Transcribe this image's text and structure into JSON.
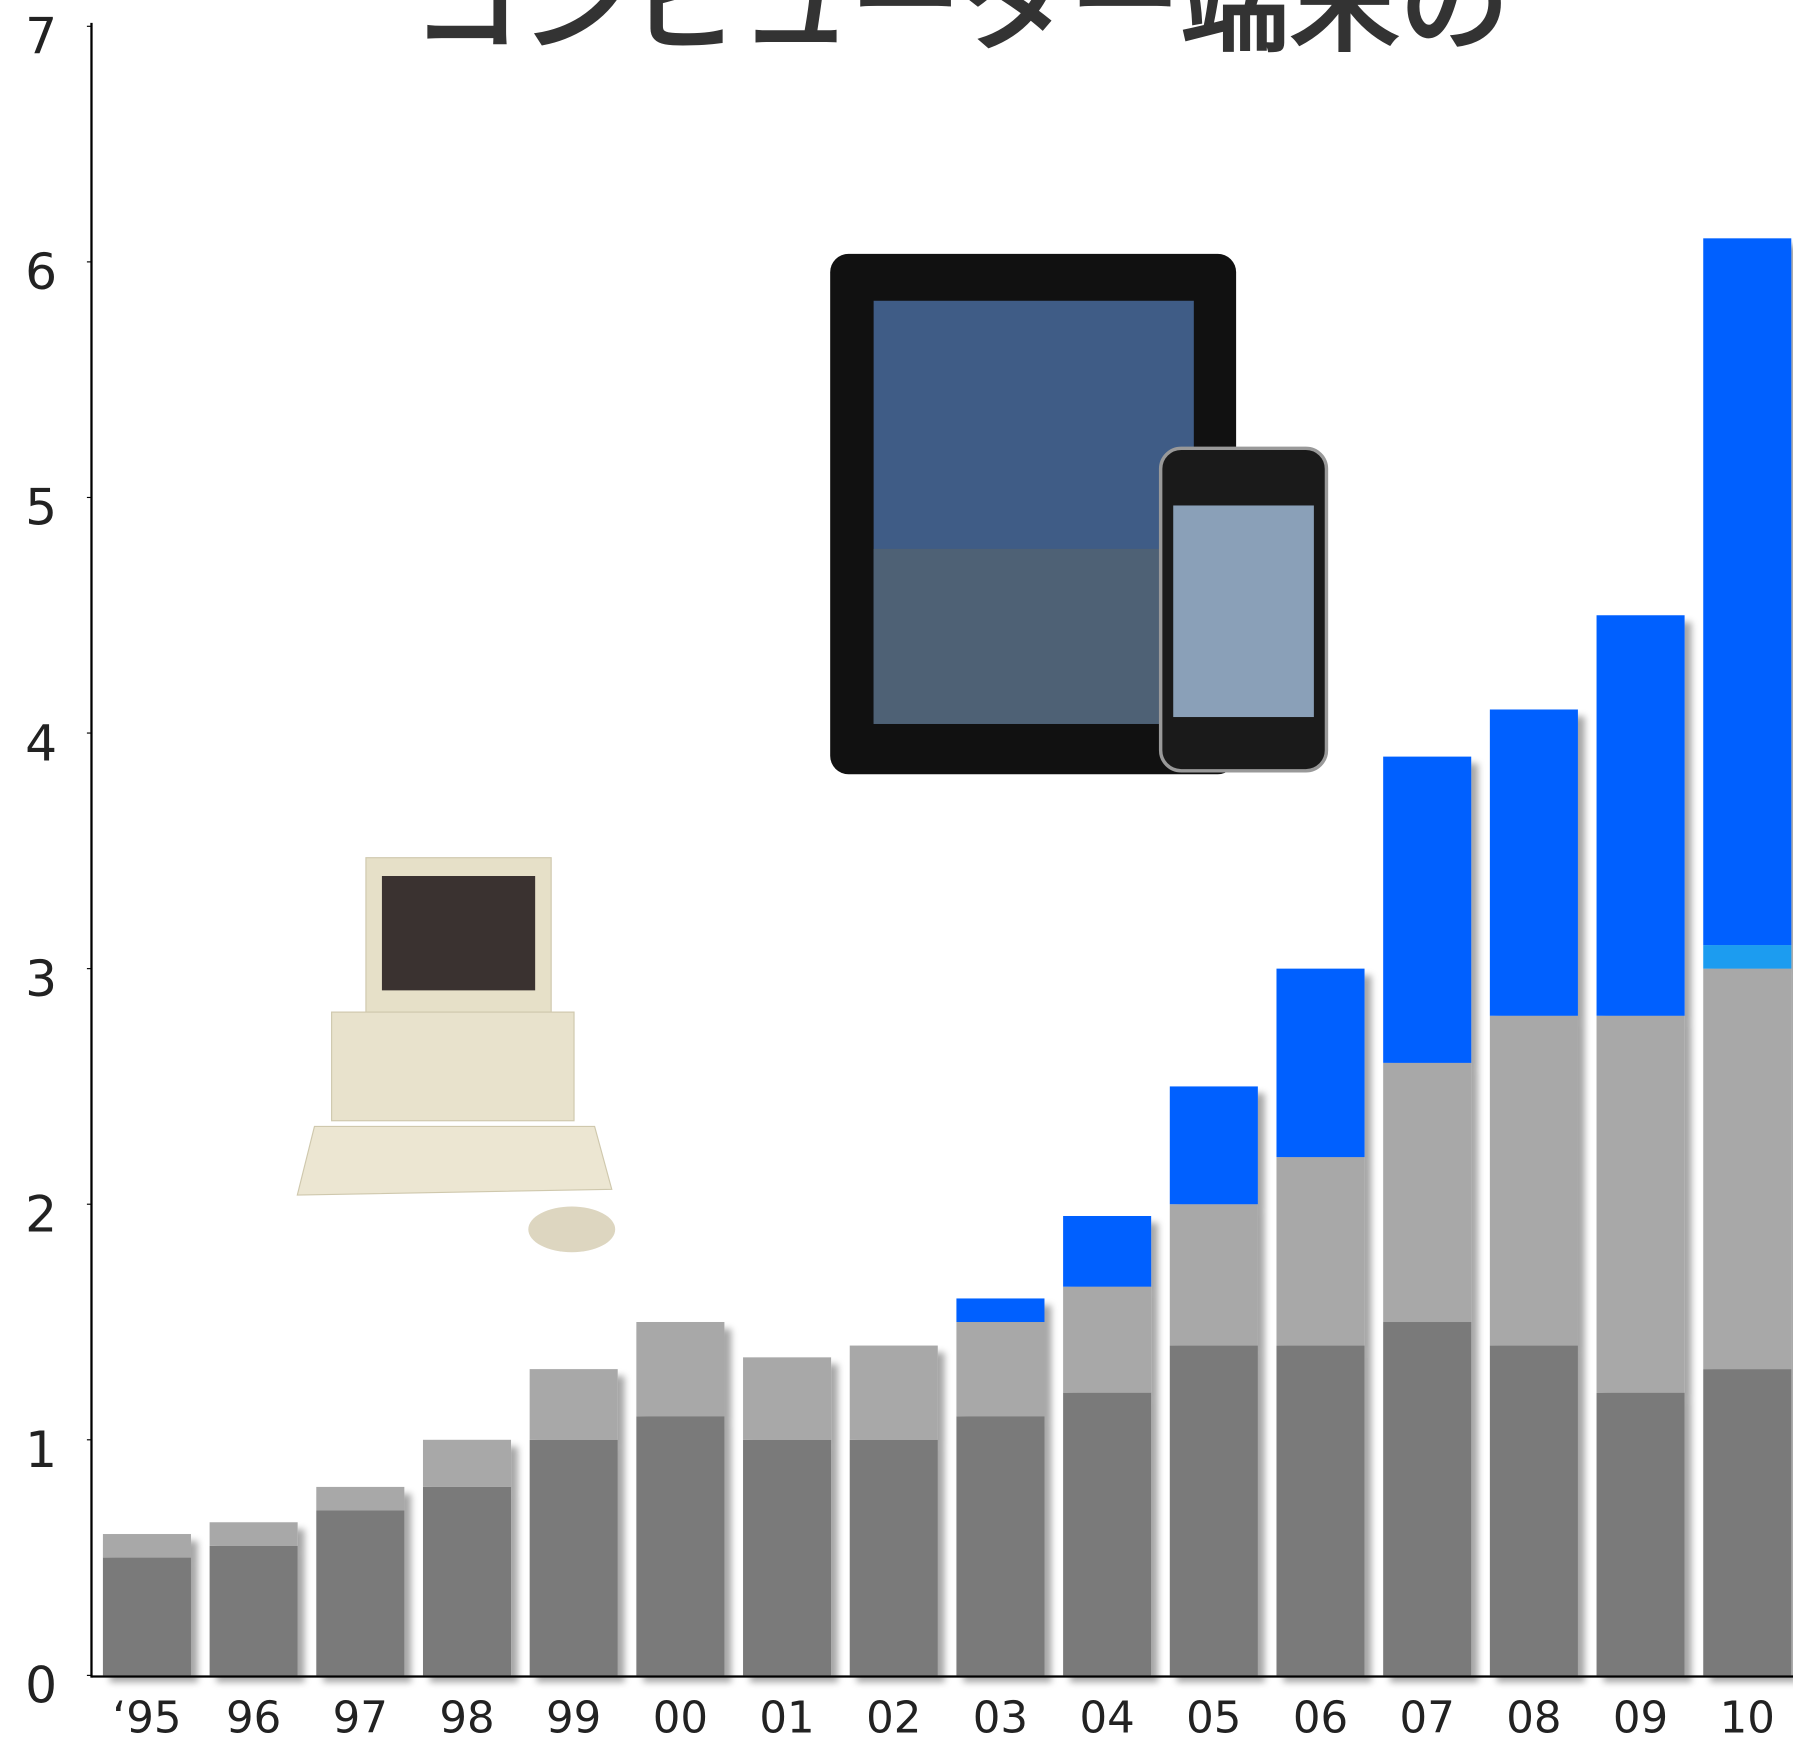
{
  "chart_data": {
    "type": "stacked-bar",
    "title": "コンピューター端末の",
    "categories": [
      "‘95",
      "96",
      "97",
      "98",
      "99",
      "00",
      "01",
      "02",
      "03",
      "04",
      "05",
      "06",
      "07",
      "08",
      "09",
      "10"
    ],
    "series": [
      {
        "color": "#7a7a7a",
        "values": [
          0.5,
          0.55,
          0.7,
          0.8,
          1.0,
          1.1,
          1.0,
          1.0,
          1.1,
          1.2,
          1.4,
          1.4,
          1.5,
          1.4,
          1.2,
          1.3
        ]
      },
      {
        "color": "#a8a8a8",
        "values": [
          0.1,
          0.1,
          0.1,
          0.2,
          0.3,
          0.4,
          0.35,
          0.4,
          0.4,
          0.45,
          0.6,
          0.8,
          1.1,
          1.4,
          1.6,
          1.7
        ]
      },
      {
        "color": "#1a9cf0",
        "values": [
          null,
          null,
          null,
          null,
          null,
          null,
          null,
          null,
          null,
          null,
          null,
          null,
          null,
          null,
          null,
          0.1
        ]
      },
      {
        "color": "#0060ff",
        "values": [
          null,
          null,
          null,
          null,
          null,
          null,
          null,
          null,
          0.1,
          0.3,
          0.5,
          0.8,
          1.3,
          1.3,
          1.7,
          3.0
        ]
      }
    ],
    "ylim": [
      0,
      7
    ],
    "yticks": [
      0,
      1,
      2,
      3,
      4,
      5,
      6,
      7
    ]
  }
}
